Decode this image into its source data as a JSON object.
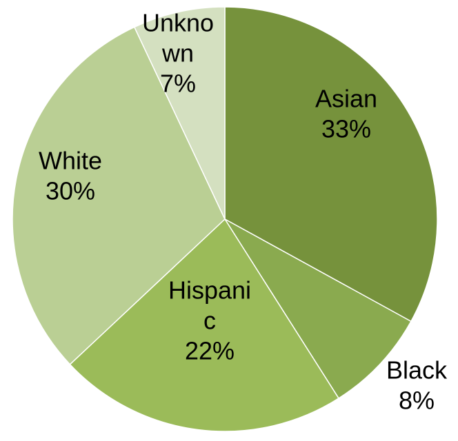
{
  "chart_data": {
    "type": "pie",
    "start": "12 o'clock",
    "direction": "clockwise",
    "legend": "none",
    "slices": [
      {
        "label_lines": [
          "Asian"
        ],
        "percent_text": "33%",
        "value": 33,
        "color": "#76923c"
      },
      {
        "label_lines": [
          "Black"
        ],
        "percent_text": "8%",
        "value": 8,
        "color": "#8aaa4f"
      },
      {
        "label_lines": [
          "Hispani",
          "c"
        ],
        "percent_text": "22%",
        "value": 22,
        "color": "#9bbb59"
      },
      {
        "label_lines": [
          "White"
        ],
        "percent_text": "30%",
        "value": 30,
        "color": "#bacf94"
      },
      {
        "label_lines": [
          "Unkno",
          "wn"
        ],
        "percent_text": "7%",
        "value": 7,
        "color": "#d4e0c0"
      }
    ]
  }
}
